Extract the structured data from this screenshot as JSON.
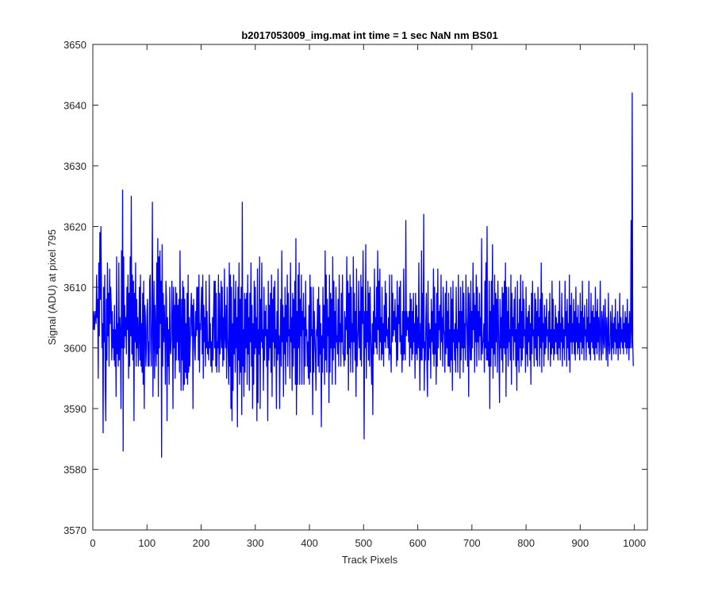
{
  "chart_data": {
    "type": "line",
    "title": "b2017053009_img.mat int time = 1 sec  NaN nm BS01",
    "xlabel": "Track Pixels",
    "ylabel": "Signal (ADU) at pixel 795",
    "xlim": [
      0,
      1024
    ],
    "ylim": [
      3570,
      3650
    ],
    "x_ticks": [
      0,
      100,
      200,
      300,
      400,
      500,
      600,
      700,
      800,
      900,
      1000
    ],
    "y_ticks": [
      3570,
      3580,
      3590,
      3600,
      3610,
      3620,
      3630,
      3640,
      3650
    ],
    "grid": false,
    "legend": false,
    "series": [
      {
        "color": "#0000ff",
        "x_start": 1,
        "x_step": 1,
        "values": [
          3603,
          3606,
          3603,
          3605,
          3606,
          3604,
          3612,
          3605,
          3608,
          3595,
          3614,
          3602,
          3619,
          3608,
          3620,
          3609,
          3600,
          3604,
          3586,
          3610,
          3601,
          3612,
          3594,
          3588,
          3608,
          3598,
          3614,
          3602,
          3609,
          3597,
          3613,
          3604,
          3610,
          3607,
          3598,
          3606,
          3600,
          3603,
          3598,
          3607,
          3597,
          3603,
          3592,
          3615,
          3599,
          3604,
          3597,
          3614,
          3598,
          3605,
          3602,
          3590,
          3616,
          3600,
          3626,
          3583,
          3615,
          3600,
          3607,
          3602,
          3605,
          3599,
          3610,
          3603,
          3612,
          3595,
          3609,
          3597,
          3615,
          3602,
          3625,
          3599,
          3612,
          3598,
          3611,
          3588,
          3609,
          3601,
          3614,
          3597,
          3608,
          3600,
          3605,
          3597,
          3602,
          3610,
          3598,
          3612,
          3597,
          3604,
          3596,
          3609,
          3594,
          3611,
          3590,
          3607,
          3605,
          3597,
          3600,
          3606,
          3608,
          3597,
          3601,
          3597,
          3611,
          3612,
          3600,
          3597,
          3605,
          3624,
          3592,
          3603,
          3611,
          3595,
          3607,
          3602,
          3597,
          3614,
          3599,
          3618,
          3592,
          3615,
          3600,
          3616,
          3604,
          3611,
          3582,
          3617,
          3597,
          3609,
          3601,
          3607,
          3603,
          3594,
          3611,
          3608,
          3588,
          3605,
          3597,
          3603,
          3594,
          3610,
          3600,
          3599,
          3602,
          3611,
          3605,
          3590,
          3610,
          3600,
          3607,
          3595,
          3610,
          3598,
          3609,
          3601,
          3607,
          3598,
          3608,
          3596,
          3616,
          3603,
          3593,
          3608,
          3598,
          3611,
          3593,
          3610,
          3594,
          3608,
          3596,
          3604,
          3595,
          3609,
          3594,
          3612,
          3596,
          3605,
          3597,
          3601,
          3606,
          3609,
          3602,
          3607,
          3590,
          3608,
          3605,
          3600,
          3598,
          3606,
          3602,
          3610,
          3603,
          3610,
          3598,
          3612,
          3596,
          3604,
          3603,
          3607,
          3610,
          3599,
          3612,
          3595,
          3607,
          3601,
          3605,
          3597,
          3611,
          3600,
          3606,
          3599,
          3601,
          3598,
          3612,
          3600,
          3604,
          3597,
          3601,
          3596,
          3605,
          3598,
          3606,
          3611,
          3600,
          3611,
          3597,
          3609,
          3596,
          3601,
          3600,
          3612,
          3596,
          3609,
          3599,
          3602,
          3611,
          3600,
          3610,
          3597,
          3605,
          3598,
          3613,
          3602,
          3600,
          3607,
          3595,
          3610,
          3602,
          3599,
          3594,
          3614,
          3597,
          3612,
          3590,
          3610,
          3588,
          3604,
          3593,
          3612,
          3599,
          3608,
          3596,
          3611,
          3600,
          3605,
          3587,
          3610,
          3598,
          3614,
          3594,
          3608,
          3596,
          3610,
          3589,
          3624,
          3597,
          3603,
          3592,
          3609,
          3596,
          3608,
          3600,
          3609,
          3594,
          3612,
          3599,
          3605,
          3593,
          3609,
          3601,
          3614,
          3597,
          3607,
          3590,
          3604,
          3594,
          3611,
          3599,
          3610,
          3600,
          3605,
          3588,
          3613,
          3591,
          3603,
          3599,
          3615,
          3590,
          3608,
          3601,
          3614,
          3600,
          3603,
          3593,
          3610,
          3598,
          3606,
          3602,
          3607,
          3597,
          3603,
          3588,
          3611,
          3598,
          3607,
          3600,
          3609,
          3596,
          3612,
          3592,
          3608,
          3601,
          3610,
          3597,
          3611,
          3600,
          3603,
          3590,
          3606,
          3598,
          3613,
          3599,
          3602,
          3590,
          3601,
          3608,
          3597,
          3616,
          3601,
          3607,
          3592,
          3605,
          3599,
          3610,
          3594,
          3607,
          3601,
          3612,
          3597,
          3609,
          3602,
          3603,
          3595,
          3614,
          3601,
          3605,
          3593,
          3609,
          3597,
          3608,
          3600,
          3611,
          3594,
          3618,
          3589,
          3606,
          3594,
          3612,
          3600,
          3614,
          3594,
          3608,
          3602,
          3612,
          3594,
          3606,
          3603,
          3609,
          3594,
          3605,
          3597,
          3611,
          3602,
          3603,
          3597,
          3601,
          3595,
          3607,
          3594,
          3612,
          3596,
          3610,
          3602,
          3603,
          3589,
          3610,
          3596,
          3606,
          3602,
          3599,
          3593,
          3603,
          3602,
          3608,
          3597,
          3610,
          3596,
          3607,
          3599,
          3604,
          3587,
          3602,
          3596,
          3610,
          3600,
          3607,
          3594,
          3616,
          3598,
          3612,
          3596,
          3608,
          3602,
          3605,
          3591,
          3612,
          3596,
          3609,
          3600,
          3608,
          3594,
          3615,
          3598,
          3611,
          3600,
          3606,
          3594,
          3610,
          3601,
          3602,
          3599,
          3608,
          3597,
          3612,
          3601,
          3604,
          3597,
          3609,
          3601,
          3612,
          3599,
          3599,
          3597,
          3606,
          3598,
          3605,
          3603,
          3615,
          3599,
          3611,
          3593,
          3609,
          3600,
          3612,
          3596,
          3610,
          3601,
          3604,
          3596,
          3615,
          3601,
          3609,
          3598,
          3606,
          3592,
          3613,
          3597,
          3601,
          3603,
          3611,
          3600,
          3606,
          3598,
          3612,
          3597,
          3610,
          3604,
          3616,
          3604,
          3585,
          3606,
          3600,
          3617,
          3595,
          3606,
          3601,
          3611,
          3598,
          3609,
          3597,
          3610,
          3603,
          3598,
          3594,
          3604,
          3589,
          3606,
          3599,
          3613,
          3601,
          3605,
          3600,
          3610,
          3599,
          3616,
          3603,
          3611,
          3598,
          3613,
          3601,
          3605,
          3598,
          3610,
          3599,
          3604,
          3597,
          3607,
          3601,
          3611,
          3600,
          3609,
          3602,
          3603,
          3600,
          3605,
          3598,
          3612,
          3599,
          3600,
          3596,
          3612,
          3601,
          3609,
          3602,
          3606,
          3603,
          3608,
          3601,
          3605,
          3597,
          3611,
          3598,
          3607,
          3604,
          3610,
          3601,
          3611,
          3599,
          3602,
          3596,
          3606,
          3598,
          3613,
          3599,
          3606,
          3598,
          3621,
          3602,
          3606,
          3603,
          3605,
          3601,
          3606,
          3597,
          3609,
          3600,
          3608,
          3598,
          3606,
          3599,
          3609,
          3601,
          3604,
          3595,
          3609,
          3599,
          3607,
          3598,
          3605,
          3600,
          3614,
          3601,
          3593,
          3604,
          3598,
          3616,
          3598,
          3609,
          3600,
          3622,
          3593,
          3601,
          3598,
          3605,
          3609,
          3597,
          3592,
          3611,
          3598,
          3604,
          3600,
          3603,
          3595,
          3608,
          3601,
          3606,
          3599,
          3613,
          3597,
          3610,
          3599,
          3604,
          3594,
          3609,
          3597,
          3613,
          3600,
          3606,
          3603,
          3607,
          3598,
          3612,
          3601,
          3605,
          3597,
          3610,
          3603,
          3602,
          3596,
          3609,
          3599,
          3611,
          3600,
          3606,
          3597,
          3609,
          3597,
          3603,
          3596,
          3610,
          3598,
          3608,
          3593,
          3611,
          3601,
          3603,
          3598,
          3604,
          3596,
          3610,
          3600,
          3603,
          3596,
          3612,
          3601,
          3606,
          3595,
          3610,
          3598,
          3606,
          3600,
          3611,
          3596,
          3609,
          3600,
          3604,
          3598,
          3612,
          3605,
          3603,
          3597,
          3610,
          3592,
          3609,
          3603,
          3598,
          3611,
          3598,
          3606,
          3600,
          3614,
          3603,
          3609,
          3596,
          3607,
          3601,
          3612,
          3597,
          3610,
          3601,
          3606,
          3598,
          3609,
          3602,
          3605,
          3598,
          3618,
          3599,
          3601,
          3601,
          3604,
          3596,
          3611,
          3600,
          3614,
          3598,
          3620,
          3598,
          3601,
          3597,
          3611,
          3590,
          3606,
          3597,
          3611,
          3600,
          3617,
          3595,
          3607,
          3599,
          3612,
          3597,
          3609,
          3601,
          3608,
          3596,
          3611,
          3604,
          3599,
          3591,
          3608,
          3600,
          3605,
          3598,
          3610,
          3596,
          3609,
          3600,
          3611,
          3599,
          3614,
          3592,
          3610,
          3600,
          3606,
          3597,
          3610,
          3601,
          3603,
          3598,
          3612,
          3594,
          3609,
          3602,
          3605,
          3598,
          3608,
          3601,
          3610,
          3597,
          3603,
          3593,
          3611,
          3598,
          3604,
          3596,
          3608,
          3600,
          3612,
          3597,
          3606,
          3598,
          3611,
          3600,
          3608,
          3602,
          3603,
          3596,
          3610,
          3599,
          3605,
          3597,
          3606,
          3601,
          3607,
          3598,
          3604,
          3594,
          3609,
          3599,
          3611,
          3602,
          3603,
          3597,
          3609,
          3600,
          3608,
          3598,
          3606,
          3597,
          3610,
          3602,
          3605,
          3597,
          3608,
          3600,
          3614,
          3596,
          3609,
          3601,
          3604,
          3597,
          3607,
          3599,
          3605,
          3600,
          3608,
          3602,
          3603,
          3598,
          3606,
          3601,
          3609,
          3597,
          3603,
          3599,
          3611,
          3600,
          3608,
          3598,
          3603,
          3599,
          3607,
          3601,
          3605,
          3599,
          3604,
          3598,
          3606,
          3600,
          3611,
          3598,
          3604,
          3601,
          3609,
          3597,
          3605,
          3600,
          3603,
          3598,
          3611,
          3602,
          3606,
          3597,
          3608,
          3600,
          3604,
          3598,
          3612,
          3596,
          3607,
          3601,
          3609,
          3599,
          3604,
          3601,
          3608,
          3599,
          3606,
          3598,
          3610,
          3601,
          3605,
          3599,
          3607,
          3600,
          3604,
          3598,
          3609,
          3601,
          3606,
          3599,
          3611,
          3600,
          3605,
          3598,
          3607,
          3602,
          3603,
          3598,
          3608,
          3601,
          3605,
          3600,
          3611,
          3599,
          3604,
          3598,
          3609,
          3601,
          3606,
          3600,
          3607,
          3599,
          3605,
          3598,
          3610,
          3600,
          3606,
          3599,
          3608,
          3601,
          3605,
          3598,
          3603,
          3611,
          3600,
          3598,
          3606,
          3604,
          3599,
          3607,
          3601,
          3600,
          3608,
          3603,
          3598,
          3605,
          3602,
          3597,
          3609,
          3601,
          3599,
          3600,
          3606,
          3603,
          3598,
          3607,
          3600,
          3604,
          3599,
          3605,
          3601,
          3608,
          3599,
          3603,
          3600,
          3606,
          3598,
          3604,
          3600,
          3609,
          3599,
          3605,
          3601,
          3603,
          3600,
          3607,
          3599,
          3604,
          3601,
          3606,
          3600,
          3605,
          3599,
          3608,
          3600,
          3604,
          3598,
          3606,
          3600,
          3603,
          3621,
          3600,
          3642,
          3601,
          3597
        ]
      }
    ]
  }
}
